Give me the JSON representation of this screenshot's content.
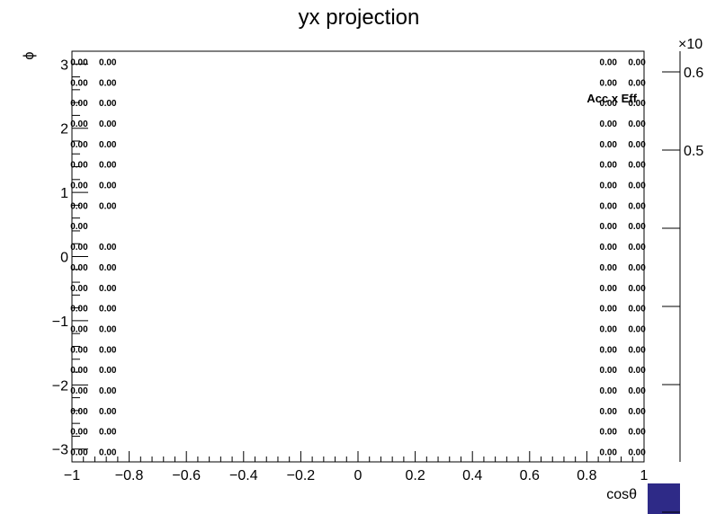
{
  "chart_data": {
    "type": "heatmap",
    "title": "yx projection",
    "xlabel": "cosθ",
    "ylabel": "ϕ",
    "zlabel": "Acc x Eff",
    "xlim": [
      -1,
      1
    ],
    "ylim": [
      -3.2,
      3.2
    ],
    "x_ticks": [
      "−1",
      "−0.8",
      "−0.6",
      "−0.4",
      "−0.2",
      "0",
      "0.2",
      "0.4",
      "0.6",
      "0.8",
      "1"
    ],
    "y_ticks": [
      "−3",
      "−2",
      "−1",
      "0",
      "1",
      "2",
      "3"
    ],
    "palette": {
      "z_exponent_label": "×10",
      "z_tick_labels": [
        "0.5",
        "0.6"
      ],
      "color": "#2e2a87"
    },
    "cell_labels": {
      "columns": [
        {
          "x": -0.975,
          "label": "0.00",
          "rows": [
            0,
            1,
            2,
            3,
            4,
            5,
            6,
            7,
            8,
            9,
            10,
            11,
            12,
            13,
            14,
            15,
            16,
            17,
            18,
            19
          ]
        },
        {
          "x": -0.875,
          "label": "0.00",
          "rows": [
            0,
            1,
            2,
            3,
            4,
            5,
            6,
            7,
            9,
            10,
            11,
            12,
            13,
            14,
            15,
            16,
            17,
            18,
            19
          ]
        },
        {
          "x": 0.875,
          "label": "0.00",
          "rows": [
            0,
            1,
            2,
            3,
            4,
            5,
            6,
            7,
            8,
            9,
            10,
            11,
            12,
            13,
            14,
            15,
            16,
            17,
            18,
            19
          ]
        },
        {
          "x": 0.975,
          "label": "0.00",
          "rows": [
            0,
            1,
            2,
            3,
            4,
            5,
            6,
            7,
            8,
            9,
            10,
            11,
            12,
            13,
            14,
            15,
            16,
            17,
            18,
            19
          ]
        }
      ],
      "row_count": 20
    }
  }
}
